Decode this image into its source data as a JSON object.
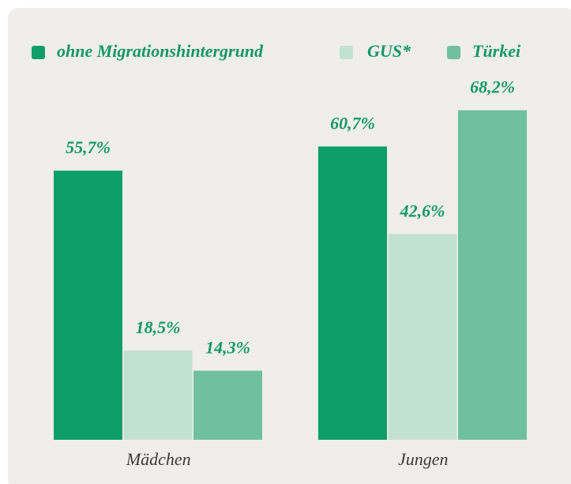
{
  "chart_data": {
    "type": "bar",
    "categories": [
      "Mädchen",
      "Jungen"
    ],
    "series": [
      {
        "name": "ohne Migrationshintergrund",
        "color": "#0e9e6a",
        "values": [
          55.7,
          60.7
        ],
        "value_labels": [
          "55,7%",
          "60,7%"
        ]
      },
      {
        "name": "GUS*",
        "color": "#c3e1d1",
        "values": [
          18.5,
          42.6
        ],
        "value_labels": [
          "18,5%",
          "42,6%"
        ]
      },
      {
        "name": "Türkei",
        "color": "#6fc09d",
        "values": [
          14.3,
          68.2
        ],
        "value_labels": [
          "14,3%",
          "68,2%"
        ]
      }
    ]
  }
}
